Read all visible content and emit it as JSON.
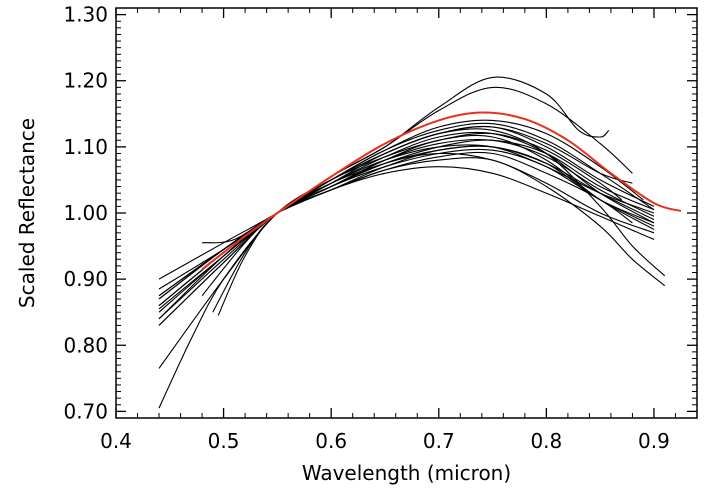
{
  "chart_data": {
    "type": "line",
    "title": "",
    "xlabel": "Wavelength (micron)",
    "ylabel": "Scaled Reflectance",
    "xlim": [
      0.4,
      0.94
    ],
    "ylim": [
      0.69,
      1.31
    ],
    "x_ticks": [
      0.4,
      0.5,
      0.6,
      0.7,
      0.8,
      0.9
    ],
    "x_tick_labels": [
      "0.4",
      "0.5",
      "0.6",
      "0.7",
      "0.8",
      "0.9"
    ],
    "y_ticks": [
      0.7,
      0.8,
      0.9,
      1.0,
      1.1,
      1.2,
      1.3
    ],
    "y_tick_labels": [
      "0.70",
      "0.80",
      "0.90",
      "1.00",
      "1.10",
      "1.20",
      "1.30"
    ],
    "minor_ticks": true,
    "grid": false,
    "legend": "none",
    "colors": {
      "spectra": "#000000",
      "highlight": "#e8301c"
    },
    "series": [
      {
        "color": "#000000",
        "x": [
          0.44,
          0.5,
          0.55,
          0.6,
          0.65,
          0.7,
          0.75,
          0.8,
          0.83,
          0.85,
          0.858
        ],
        "y": [
          0.885,
          0.945,
          1.0,
          1.055,
          1.1,
          1.16,
          1.205,
          1.18,
          1.125,
          1.115,
          1.125
        ]
      },
      {
        "color": "#000000",
        "x": [
          0.44,
          0.5,
          0.55,
          0.6,
          0.65,
          0.7,
          0.75,
          0.8,
          0.85,
          0.88
        ],
        "y": [
          0.875,
          0.945,
          1.0,
          1.055,
          1.1,
          1.155,
          1.19,
          1.165,
          1.105,
          1.06
        ]
      },
      {
        "color": "#000000",
        "x": [
          0.44,
          0.5,
          0.55,
          0.6,
          0.65,
          0.7,
          0.75,
          0.8,
          0.85,
          0.89
        ],
        "y": [
          0.9,
          0.955,
          1.0,
          1.05,
          1.095,
          1.13,
          1.14,
          1.12,
          1.07,
          1.02
        ]
      },
      {
        "color": "#000000",
        "x": [
          0.44,
          0.5,
          0.55,
          0.6,
          0.65,
          0.7,
          0.75,
          0.8,
          0.85,
          0.9
        ],
        "y": [
          0.87,
          0.945,
          1.0,
          1.045,
          1.09,
          1.12,
          1.13,
          1.1,
          1.05,
          1.01
        ]
      },
      {
        "color": "#000000",
        "x": [
          0.44,
          0.5,
          0.55,
          0.6,
          0.65,
          0.7,
          0.75,
          0.8,
          0.85,
          0.9
        ],
        "y": [
          0.86,
          0.94,
          1.0,
          1.045,
          1.085,
          1.115,
          1.12,
          1.09,
          1.03,
          0.985
        ]
      },
      {
        "color": "#000000",
        "x": [
          0.44,
          0.5,
          0.55,
          0.6,
          0.65,
          0.7,
          0.75,
          0.8,
          0.85,
          0.9
        ],
        "y": [
          0.85,
          0.935,
          1.0,
          1.04,
          1.08,
          1.105,
          1.11,
          1.085,
          1.035,
          0.995
        ]
      },
      {
        "color": "#000000",
        "x": [
          0.44,
          0.5,
          0.55,
          0.6,
          0.65,
          0.7,
          0.75,
          0.8,
          0.85,
          0.9
        ],
        "y": [
          0.84,
          0.93,
          1.0,
          1.04,
          1.075,
          1.1,
          1.11,
          1.09,
          1.04,
          1.005
        ]
      },
      {
        "color": "#000000",
        "x": [
          0.44,
          0.5,
          0.55,
          0.6,
          0.65,
          0.7,
          0.75,
          0.8,
          0.85,
          0.9
        ],
        "y": [
          0.83,
          0.925,
          1.0,
          1.035,
          1.07,
          1.095,
          1.1,
          1.075,
          1.02,
          0.985
        ]
      },
      {
        "color": "#000000",
        "x": [
          0.44,
          0.5,
          0.55,
          0.6,
          0.65,
          0.7,
          0.75,
          0.8,
          0.85,
          0.9
        ],
        "y": [
          0.83,
          0.925,
          1.0,
          1.04,
          1.08,
          1.11,
          1.115,
          1.08,
          1.02,
          0.975
        ]
      },
      {
        "color": "#000000",
        "x": [
          0.44,
          0.5,
          0.55,
          0.6,
          0.65,
          0.7,
          0.75,
          0.8,
          0.85,
          0.9
        ],
        "y": [
          0.86,
          0.94,
          1.0,
          1.04,
          1.075,
          1.09,
          1.08,
          1.045,
          1.0,
          0.97
        ]
      },
      {
        "color": "#000000",
        "x": [
          0.44,
          0.5,
          0.55,
          0.6,
          0.65,
          0.7,
          0.75,
          0.8,
          0.85,
          0.88,
          0.91
        ],
        "y": [
          0.84,
          0.935,
          1.0,
          1.035,
          1.065,
          1.08,
          1.08,
          1.04,
          0.98,
          0.93,
          0.89
        ]
      },
      {
        "color": "#000000",
        "x": [
          0.44,
          0.5,
          0.55,
          0.6,
          0.65,
          0.7,
          0.75,
          0.8,
          0.85,
          0.88,
          0.91
        ],
        "y": [
          0.855,
          0.935,
          1.0,
          1.05,
          1.09,
          1.12,
          1.125,
          1.09,
          1.01,
          0.95,
          0.905
        ]
      },
      {
        "color": "#000000",
        "x": [
          0.44,
          0.5,
          0.55,
          0.6,
          0.65,
          0.7,
          0.75,
          0.8,
          0.85,
          0.9
        ],
        "y": [
          0.765,
          0.9,
          1.0,
          1.05,
          1.095,
          1.125,
          1.135,
          1.11,
          1.06,
          1.005
        ]
      },
      {
        "color": "#000000",
        "x": [
          0.44,
          0.47,
          0.5,
          0.55,
          0.6,
          0.65,
          0.7,
          0.75,
          0.8,
          0.85,
          0.87
        ],
        "y": [
          0.705,
          0.81,
          0.9,
          1.0,
          1.05,
          1.085,
          1.11,
          1.12,
          1.095,
          1.045,
          1.02
        ]
      },
      {
        "color": "#000000",
        "x": [
          0.48,
          0.51,
          0.55,
          0.6,
          0.65,
          0.7,
          0.75,
          0.8,
          0.85,
          0.88
        ],
        "y": [
          0.955,
          0.96,
          1.0,
          1.035,
          1.065,
          1.085,
          1.09,
          1.06,
          1.02,
          0.985
        ]
      },
      {
        "color": "#000000",
        "x": [
          0.49,
          0.52,
          0.55,
          0.6,
          0.65,
          0.7,
          0.75,
          0.8,
          0.85,
          0.9
        ],
        "y": [
          0.85,
          0.94,
          1.0,
          1.045,
          1.075,
          1.095,
          1.1,
          1.075,
          1.03,
          0.99
        ]
      },
      {
        "color": "#000000",
        "x": [
          0.495,
          0.52,
          0.55,
          0.6,
          0.65,
          0.7,
          0.75,
          0.8,
          0.85,
          0.9
        ],
        "y": [
          0.845,
          0.935,
          1.0,
          1.04,
          1.07,
          1.09,
          1.095,
          1.07,
          1.02,
          0.98
        ]
      },
      {
        "color": "#000000",
        "x": [
          0.48,
          0.52,
          0.55,
          0.6,
          0.65,
          0.7,
          0.75,
          0.8,
          0.85,
          0.9
        ],
        "y": [
          0.875,
          0.955,
          1.0,
          1.035,
          1.06,
          1.07,
          1.06,
          1.03,
          0.995,
          0.96
        ]
      },
      {
        "color": "#000000",
        "x": [
          0.44,
          0.5,
          0.55,
          0.6,
          0.65,
          0.7,
          0.75,
          0.8,
          0.85,
          0.88
        ],
        "y": [
          0.875,
          0.945,
          1.0,
          1.05,
          1.09,
          1.12,
          1.13,
          1.105,
          1.06,
          1.045
        ]
      },
      {
        "color": "#000000",
        "x": [
          0.44,
          0.5,
          0.55,
          0.6,
          0.65,
          0.7,
          0.75,
          0.8,
          0.85,
          0.9
        ],
        "y": [
          0.87,
          0.945,
          1.0,
          1.045,
          1.08,
          1.1,
          1.1,
          1.07,
          1.03,
          1.0
        ]
      },
      {
        "color": "#e8301c",
        "x": [
          0.48,
          0.52,
          0.55,
          0.6,
          0.65,
          0.7,
          0.74,
          0.78,
          0.82,
          0.86,
          0.9,
          0.925
        ],
        "y": [
          0.915,
          0.965,
          1.0,
          1.055,
          1.105,
          1.14,
          1.152,
          1.142,
          1.11,
          1.06,
          1.015,
          1.003
        ]
      }
    ]
  }
}
